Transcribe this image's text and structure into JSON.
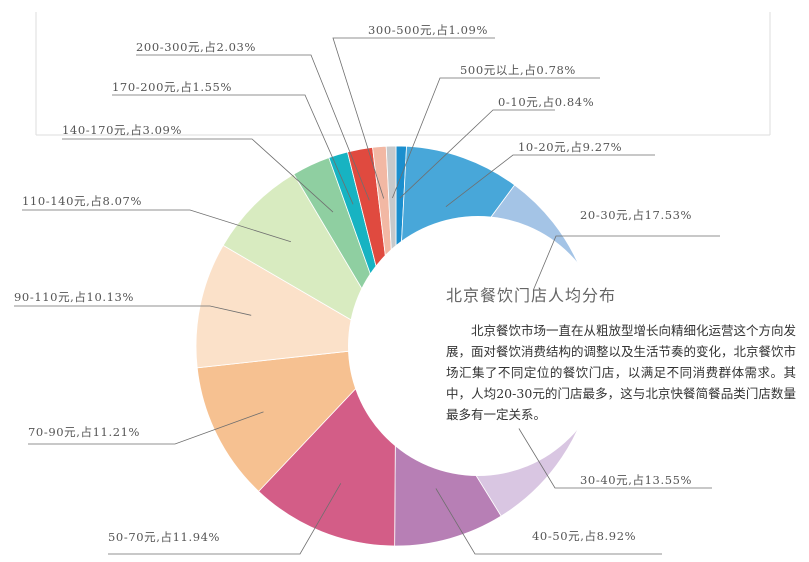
{
  "chart_data": {
    "type": "pie",
    "title": "北京餐饮门店人均分布",
    "description": "北京餐饮市场一直在从粗放型增长向精细化运营这个方向发展，面对餐饮消费结构的调整以及生活节奏的变化，北京餐饮市场汇集了不同定位的餐饮门店，以满足不同消费群体需求。其中，人均20-30元的门店最多，这与北京快餐简餐品类门店数量最多有一定关系。",
    "slices": [
      {
        "category": "0-10元",
        "value": 0.84,
        "label": "0-10元,占0.84%",
        "color": "#1b8fce"
      },
      {
        "category": "10-20元",
        "value": 9.27,
        "label": "10-20元,占9.27%",
        "color": "#48a7d9"
      },
      {
        "category": "20-30元",
        "value": 17.53,
        "label": "20-30元,占17.53%",
        "color": "#a4c4e6"
      },
      {
        "category": "30-40元",
        "value": 13.55,
        "label": "30-40元,占13.55%",
        "color": "#d9c6e2"
      },
      {
        "category": "40-50元",
        "value": 8.92,
        "label": "40-50元,占8.92%",
        "color": "#b77fb5"
      },
      {
        "category": "50-70元",
        "value": 11.94,
        "label": "50-70元,占11.94%",
        "color": "#d35d87"
      },
      {
        "category": "70-90元",
        "value": 11.21,
        "label": "70-90元,占11.21%",
        "color": "#f6c191"
      },
      {
        "category": "90-110元",
        "value": 10.13,
        "label": "90-110元,占10.13%",
        "color": "#fbe1c9"
      },
      {
        "category": "110-140元",
        "value": 8.07,
        "label": "110-140元,占8.07%",
        "color": "#d8ebc0"
      },
      {
        "category": "140-170元",
        "value": 3.09,
        "label": "140-170元,占3.09%",
        "color": "#8fcfa1"
      },
      {
        "category": "170-200元",
        "value": 1.55,
        "label": "170-200元,占1.55%",
        "color": "#17b3c2"
      },
      {
        "category": "200-300元",
        "value": 2.03,
        "label": "200-300元,占2.03%",
        "color": "#e04a3f"
      },
      {
        "category": "300-500元",
        "value": 1.09,
        "label": "300-500元,占1.09%",
        "color": "#f2b8a4"
      },
      {
        "category": "500元以上",
        "value": 0.78,
        "label": "500元以上,占0.78%",
        "color": "#c6c9cb"
      }
    ]
  }
}
